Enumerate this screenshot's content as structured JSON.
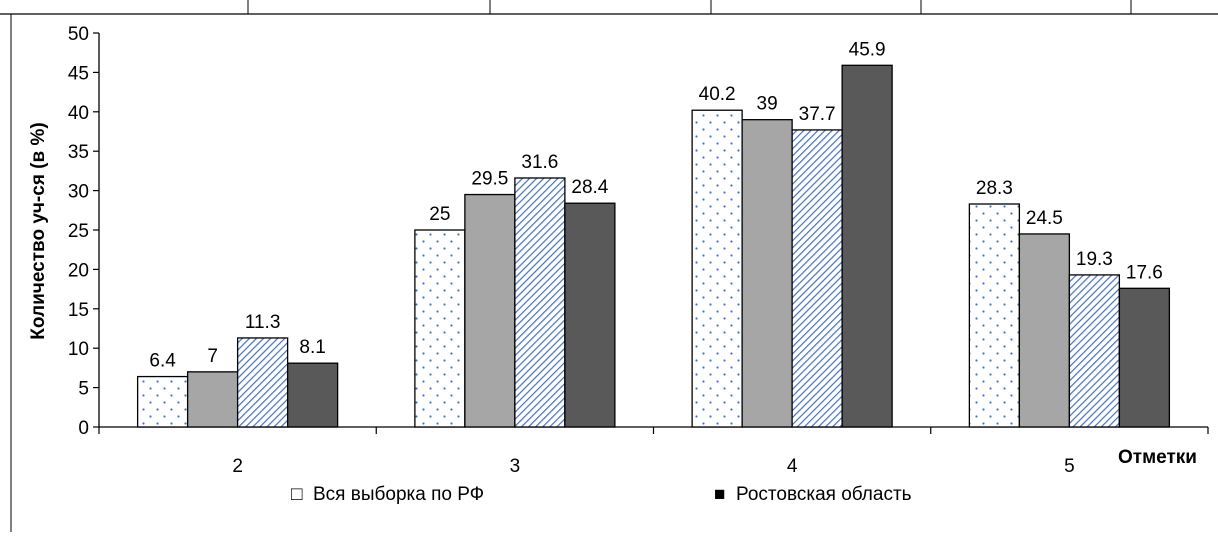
{
  "chart_data": {
    "type": "bar",
    "categories": [
      "2",
      "3",
      "4",
      "5"
    ],
    "series": [
      {
        "name": "Вся выборка по РФ",
        "values": [
          6.4,
          25,
          40.2,
          28.3
        ],
        "fill": "dots",
        "color": "#ffffff",
        "pattern_color": "#4472c4"
      },
      {
        "name": "",
        "values": [
          7,
          29.5,
          39,
          24.5
        ],
        "fill": "solid",
        "color": "#a6a6a6"
      },
      {
        "name": "",
        "values": [
          11.3,
          31.6,
          37.7,
          19.3
        ],
        "fill": "diagonal",
        "color": "#ffffff",
        "pattern_color": "#4472c4"
      },
      {
        "name": "Ростовская область",
        "values": [
          8.1,
          28.4,
          45.9,
          17.6
        ],
        "fill": "solid",
        "color": "#595959"
      }
    ],
    "data_labels": [
      [
        "6.4",
        "25",
        "40.2",
        "28.3"
      ],
      [
        "7",
        "29.5",
        "39",
        "24.5"
      ],
      [
        "11.3",
        "31.6",
        "37.7",
        "19.3"
      ],
      [
        "8.1",
        "28.4",
        "45.9",
        "17.6"
      ]
    ],
    "ylim": [
      0,
      50
    ],
    "yticks": [
      "0",
      "5",
      "10",
      "15",
      "20",
      "25",
      "30",
      "35",
      "40",
      "45",
      "50"
    ],
    "ylabel": "Количество уч-ся (в %)",
    "xlabel": "Отметки",
    "legend_position": "bottom",
    "legend": [
      {
        "label": "Вся выборка по РФ",
        "marker": "□"
      },
      {
        "label": "Ростовская область",
        "marker": "■"
      }
    ],
    "grid": false
  }
}
